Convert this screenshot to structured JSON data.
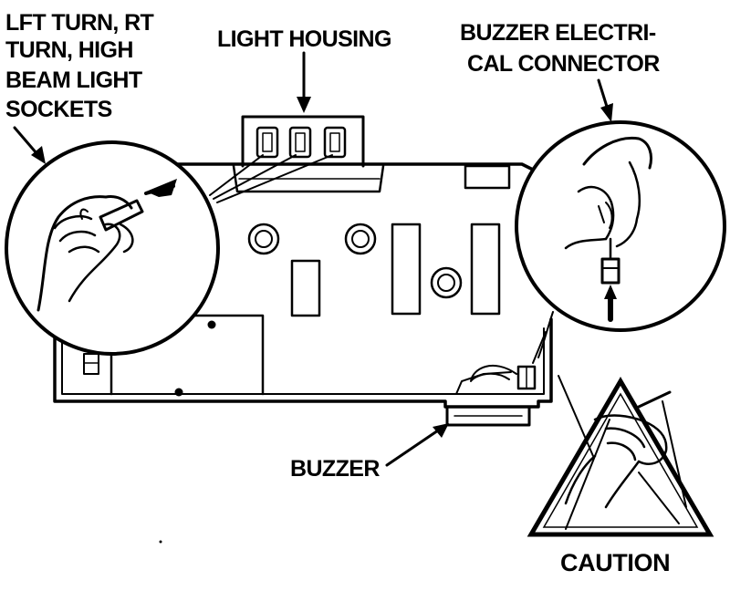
{
  "labels": {
    "sockets": [
      "LFT TURN, RT",
      "TURN, HIGH",
      "BEAM LIGHT",
      "SOCKETS"
    ],
    "light_housing": "LIGHT HOUSING",
    "buzzer_connector": [
      "BUZZER ELECTRI-",
      "CAL CONNECTOR"
    ],
    "buzzer": "BUZZER",
    "caution": "CAUTION"
  },
  "colors": {
    "ink": "#000000",
    "paper": "#ffffff"
  }
}
